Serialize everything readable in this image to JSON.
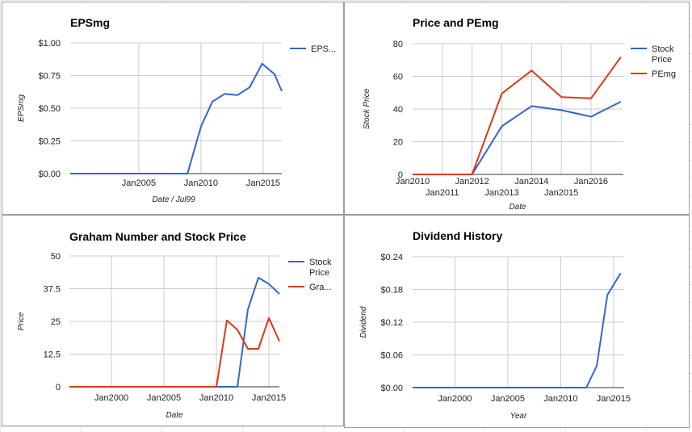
{
  "chart_data": [
    {
      "type": "line",
      "title": "EPSmg",
      "xlabel": "Date / Jul99",
      "ylabel": "EPSmg",
      "x_type": "date",
      "xlim": [
        "1999-07-01",
        "2016-07-01"
      ],
      "ylim": [
        0,
        1
      ],
      "y_ticks": [
        "$0.00",
        "$0.25",
        "$0.50",
        "$0.75",
        "$1.00"
      ],
      "y_tick_values": [
        0,
        0.25,
        0.5,
        0.75,
        1
      ],
      "x_ticks": [
        {
          "label": "Jan2005",
          "value": "2005-01-01"
        },
        {
          "label": "Jan2010",
          "value": "2010-01-01"
        },
        {
          "label": "Jan2015",
          "value": "2015-01-01"
        }
      ],
      "grid": true,
      "legend": "right",
      "series": [
        {
          "name": "EPS...",
          "color": "#3366cc",
          "x": [
            "1999-07-01",
            "2008-12-01",
            "2010-01-01",
            "2010-12-01",
            "2011-12-01",
            "2012-12-01",
            "2013-12-01",
            "2014-12-01",
            "2015-12-01",
            "2016-07-01"
          ],
          "y": [
            0,
            0,
            0.36,
            0.55,
            0.61,
            0.6,
            0.66,
            0.84,
            0.76,
            0.63
          ]
        }
      ]
    },
    {
      "type": "line",
      "title": "Price and PEmg",
      "xlabel": "Date",
      "ylabel": "Stock Price",
      "x_type": "date",
      "xlim": [
        "2010-01-01",
        "2017-02-01"
      ],
      "ylim": [
        0,
        80
      ],
      "y_ticks": [
        "0",
        "20",
        "40",
        "60",
        "80"
      ],
      "y_tick_values": [
        0,
        20,
        40,
        60,
        80
      ],
      "x_ticks": [
        {
          "label": "Jan2010",
          "value": "2010-01-01",
          "row": 1
        },
        {
          "label": "Jan2011",
          "value": "2011-01-01",
          "row": 2
        },
        {
          "label": "Jan2012",
          "value": "2012-01-01",
          "row": 1
        },
        {
          "label": "Jan2013",
          "value": "2013-01-01",
          "row": 2
        },
        {
          "label": "Jan2014",
          "value": "2014-01-01",
          "row": 1
        },
        {
          "label": "Jan2015",
          "value": "2015-01-01",
          "row": 2
        },
        {
          "label": "Jan2016",
          "value": "2016-01-01",
          "row": 1
        }
      ],
      "grid": true,
      "legend": "right",
      "series": [
        {
          "name": "Stock Price",
          "color": "#3366cc",
          "x": [
            "2010-01-01",
            "2011-01-01",
            "2012-01-01",
            "2013-01-01",
            "2014-01-01",
            "2015-01-01",
            "2016-01-01",
            "2017-01-01"
          ],
          "y": [
            0,
            0,
            0,
            29.5,
            41.8,
            39.3,
            35.3,
            44.5
          ]
        },
        {
          "name": "PEmg",
          "color": "#dc3912",
          "x": [
            "2010-01-01",
            "2011-01-01",
            "2012-01-01",
            "2013-01-01",
            "2014-01-01",
            "2015-01-01",
            "2016-01-01",
            "2017-01-01"
          ],
          "y": [
            0,
            0,
            0,
            49.5,
            63.5,
            47.3,
            46.5,
            71.8
          ]
        }
      ]
    },
    {
      "type": "line",
      "title": "Graham Number and Stock Price",
      "xlabel": "Date",
      "ylabel": "Price",
      "x_type": "date",
      "xlim": [
        "1996-01-01",
        "2016-01-01"
      ],
      "ylim": [
        0,
        50
      ],
      "y_ticks": [
        "0",
        "12.5",
        "25",
        "37.5",
        "50"
      ],
      "y_tick_values": [
        0,
        12.5,
        25,
        37.5,
        50
      ],
      "x_ticks": [
        {
          "label": "Jan2000",
          "value": "2000-01-01"
        },
        {
          "label": "Jan2005",
          "value": "2005-01-01"
        },
        {
          "label": "Jan2010",
          "value": "2010-01-01"
        },
        {
          "label": "Jan2015",
          "value": "2015-01-01"
        }
      ],
      "grid": true,
      "legend": "right",
      "series": [
        {
          "name": "Stock Price",
          "color": "#3366cc",
          "x": [
            "1996-01-01",
            "2011-01-01",
            "2012-01-01",
            "2013-01-01",
            "2014-01-01",
            "2015-01-01",
            "2016-01-01"
          ],
          "y": [
            0,
            0,
            0,
            29.6,
            41.7,
            39.3,
            35.5
          ]
        },
        {
          "name": "Gra...",
          "color": "#dc3912",
          "x": [
            "1996-01-01",
            "2009-01-01",
            "2010-01-01",
            "2011-01-01",
            "2012-01-01",
            "2013-01-01",
            "2014-01-01",
            "2015-01-01",
            "2016-01-01"
          ],
          "y": [
            0,
            0,
            0,
            25.4,
            21.8,
            14.5,
            14.5,
            26.3,
            17.4
          ]
        }
      ]
    },
    {
      "type": "line",
      "title": "Dividend History",
      "xlabel": "Year",
      "ylabel": "Dividend",
      "x_type": "date",
      "xlim": [
        "1996-01-01",
        "2016-01-01"
      ],
      "ylim": [
        0,
        0.24
      ],
      "y_ticks": [
        "$0.00",
        "$0.06",
        "$0.12",
        "$0.18",
        "$0.24"
      ],
      "y_tick_values": [
        0,
        0.06,
        0.12,
        0.18,
        0.24
      ],
      "x_ticks": [
        {
          "label": "Jan2000",
          "value": "2000-01-01"
        },
        {
          "label": "Jan2005",
          "value": "2005-01-01"
        },
        {
          "label": "Jan2010",
          "value": "2010-01-01"
        },
        {
          "label": "Jan2015",
          "value": "2015-01-01"
        }
      ],
      "grid": true,
      "legend": "none",
      "series": [
        {
          "name": "",
          "color": "#3366cc",
          "x": [
            "1996-01-01",
            "2012-06-01",
            "2013-06-01",
            "2014-06-01",
            "2015-09-01"
          ],
          "y": [
            0,
            0,
            0.04,
            0.17,
            0.21
          ]
        }
      ]
    }
  ]
}
